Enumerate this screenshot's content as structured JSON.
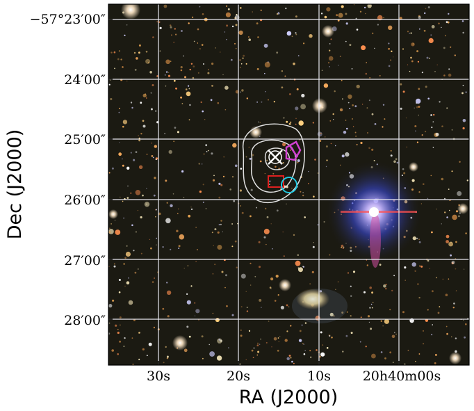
{
  "figure": {
    "xlabel": "RA (J2000)",
    "ylabel": "Dec (J2000)",
    "xticks": [
      "30s",
      "20s",
      "10s",
      "20h40m00s"
    ],
    "yticks": [
      "−57°23′00″",
      "24′00″",
      "25′00″",
      "26′00″",
      "27′00″",
      "28′00″"
    ],
    "colors": {
      "sky_background": "#1b1a12",
      "grid": "#e8e8f0",
      "contour": "#e0e0e0",
      "marker_x": "#ffffff",
      "magenta_marker": "#d040d0",
      "red_box": "#e02020",
      "cyan_circle": "#20c8e0",
      "bright_star_glow": "#3a4ad8"
    }
  },
  "chart_data": {
    "type": "image",
    "x_axis": {
      "label": "RA (J2000)",
      "ticks": [
        {
          "label": "30s",
          "seconds": 30
        },
        {
          "label": "20s",
          "seconds": 20
        },
        {
          "label": "10s",
          "seconds": 10
        },
        {
          "label": "20h40m00s",
          "seconds": 0
        }
      ]
    },
    "y_axis": {
      "label": "Dec (J2000)",
      "ticks": [
        {
          "label": "−57°23′00″",
          "arcmin": 23
        },
        {
          "label": "24′00″",
          "arcmin": 24
        },
        {
          "label": "25′00″",
          "arcmin": 25
        },
        {
          "label": "26′00″",
          "arcmin": 26
        },
        {
          "label": "27′00″",
          "arcmin": 27
        },
        {
          "label": "28′00″",
          "arcmin": 28
        }
      ]
    },
    "grid": true,
    "overlays": [
      "contours",
      "x-marker",
      "magenta-marker",
      "red-box",
      "cyan-circle"
    ]
  }
}
